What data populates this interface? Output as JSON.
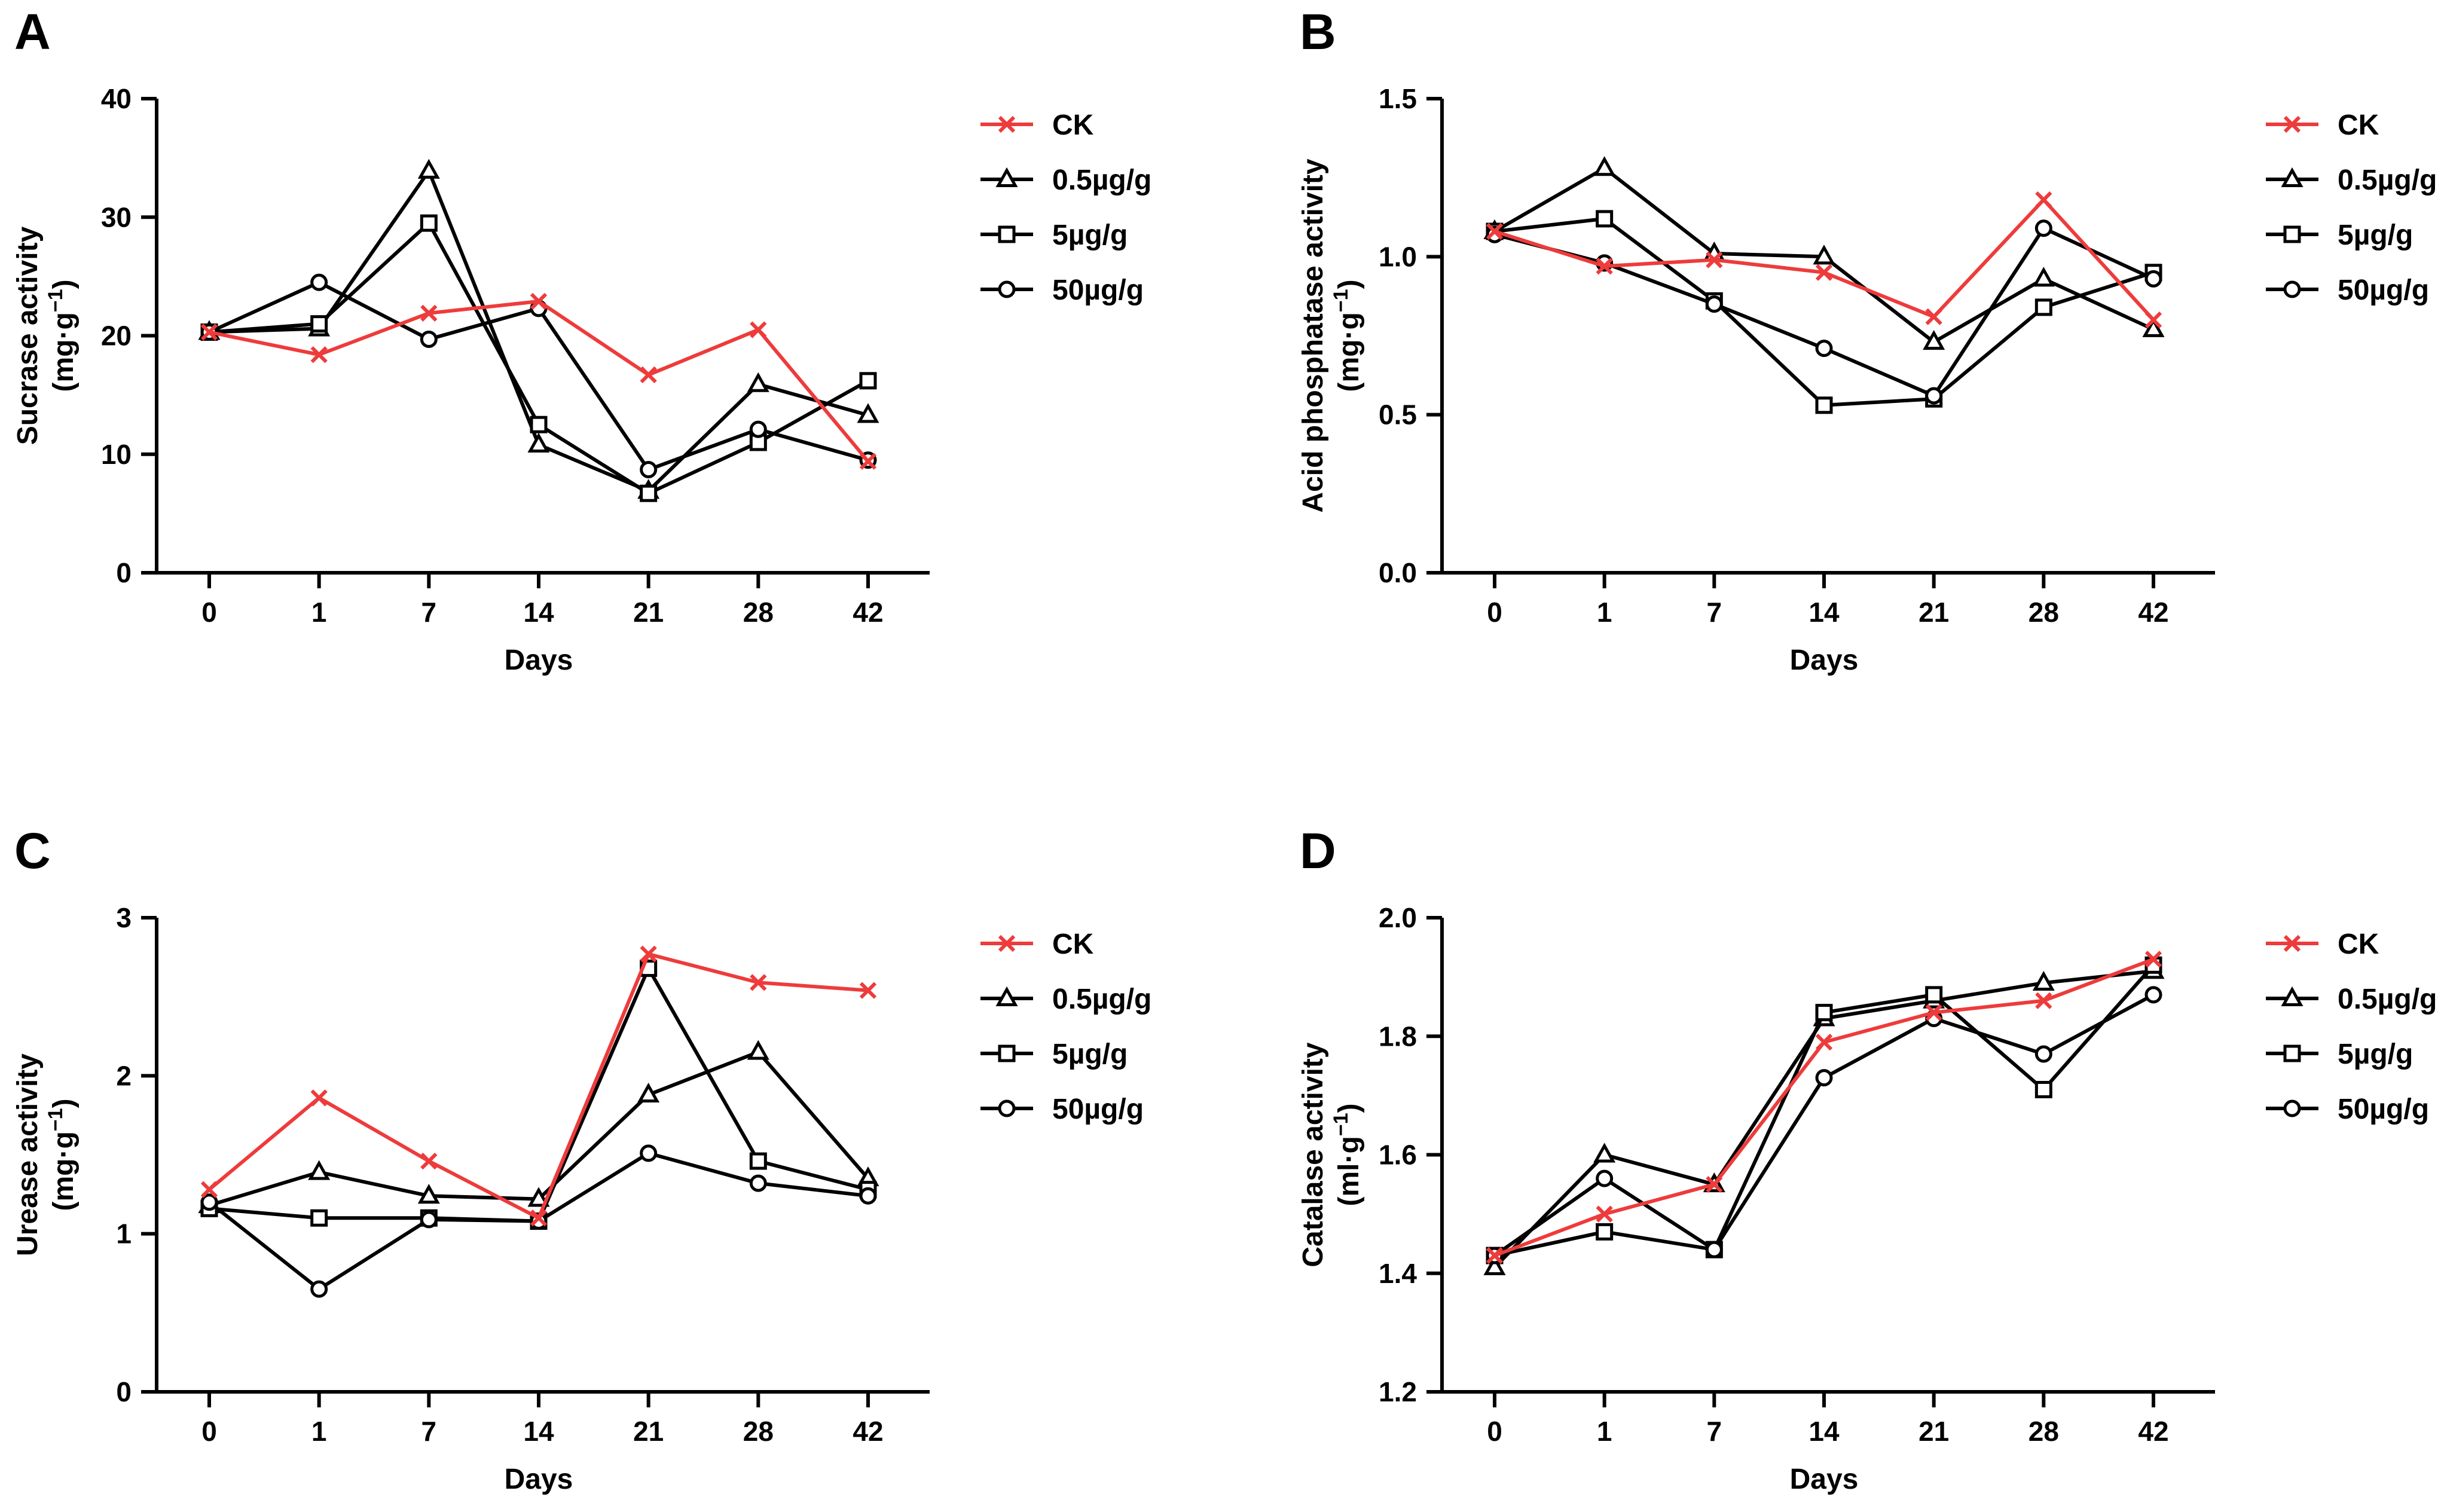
{
  "figure": {
    "colors": {
      "CK": "#ee3b3b",
      "0.5µg/g": "#000000",
      "5µg/g": "#000000",
      "50µg/g": "#000000"
    },
    "legend": [
      {
        "name": "CK",
        "marker": "x"
      },
      {
        "name": "0.5µg/g",
        "marker": "triangle"
      },
      {
        "name": "5µg/g",
        "marker": "square"
      },
      {
        "name": "50µg/g",
        "marker": "circle"
      }
    ]
  },
  "chart_data": [
    {
      "panel": "A",
      "type": "line",
      "categories": [
        "0",
        "1",
        "7",
        "14",
        "21",
        "28",
        "42"
      ],
      "xlabel": "Days",
      "ylabel": "Sucrase activity",
      "yunit": "(mg·g",
      "yunit_exp": "−1",
      "yunit_close": ")",
      "ylim": [
        0,
        40
      ],
      "yticks": [
        0,
        10,
        20,
        30,
        40
      ],
      "ytick_labels": [
        "0",
        "10",
        "20",
        "30",
        "40"
      ],
      "legend_position": "right",
      "series": [
        {
          "name": "CK",
          "marker": "x",
          "values": [
            20.3,
            18.4,
            21.9,
            22.9,
            16.7,
            20.5,
            9.4
          ]
        },
        {
          "name": "0.5µg/g",
          "marker": "triangle",
          "values": [
            20.3,
            20.6,
            33.9,
            10.8,
            6.9,
            15.9,
            13.3
          ]
        },
        {
          "name": "5µg/g",
          "marker": "square",
          "values": [
            20.3,
            21.0,
            29.5,
            12.5,
            6.7,
            11.0,
            16.2
          ]
        },
        {
          "name": "50µg/g",
          "marker": "circle",
          "values": [
            20.3,
            24.5,
            19.7,
            22.3,
            8.7,
            12.1,
            9.5
          ]
        }
      ]
    },
    {
      "panel": "B",
      "type": "line",
      "categories": [
        "0",
        "1",
        "7",
        "14",
        "21",
        "28",
        "42"
      ],
      "xlabel": "Days",
      "ylabel": "Acid phosphatase activity",
      "yunit": "(mg·g",
      "yunit_exp": "−1",
      "yunit_close": ")",
      "ylim": [
        0.0,
        1.5
      ],
      "yticks": [
        0.0,
        0.5,
        1.0,
        1.5
      ],
      "ytick_labels": [
        "0.0",
        "0.5",
        "1.0",
        "1.5"
      ],
      "legend_position": "right",
      "series": [
        {
          "name": "CK",
          "marker": "x",
          "values": [
            1.08,
            0.97,
            0.99,
            0.95,
            0.81,
            1.18,
            0.8
          ]
        },
        {
          "name": "0.5µg/g",
          "marker": "triangle",
          "values": [
            1.08,
            1.28,
            1.01,
            1.0,
            0.73,
            0.93,
            0.77
          ]
        },
        {
          "name": "5µg/g",
          "marker": "square",
          "values": [
            1.08,
            1.12,
            0.86,
            0.53,
            0.55,
            0.84,
            0.95
          ]
        },
        {
          "name": "50µg/g",
          "marker": "circle",
          "values": [
            1.07,
            0.98,
            0.85,
            0.71,
            0.56,
            1.09,
            0.93
          ]
        }
      ]
    },
    {
      "panel": "C",
      "type": "line",
      "categories": [
        "0",
        "1",
        "7",
        "14",
        "21",
        "28",
        "42"
      ],
      "xlabel": "Days",
      "ylabel": "Urease activity",
      "yunit": "(mg·g",
      "yunit_exp": "−1",
      "yunit_close": ")",
      "ylim": [
        0,
        3
      ],
      "yticks": [
        0,
        1,
        2,
        3
      ],
      "ytick_labels": [
        "0",
        "1",
        "2",
        "3"
      ],
      "legend_position": "right",
      "series": [
        {
          "name": "CK",
          "marker": "x",
          "values": [
            1.28,
            1.86,
            1.46,
            1.1,
            2.77,
            2.59,
            2.54
          ]
        },
        {
          "name": "0.5µg/g",
          "marker": "triangle",
          "values": [
            1.18,
            1.39,
            1.24,
            1.22,
            1.88,
            2.15,
            1.35
          ]
        },
        {
          "name": "5µg/g",
          "marker": "square",
          "values": [
            1.16,
            1.1,
            1.1,
            1.08,
            2.68,
            1.46,
            1.28
          ]
        },
        {
          "name": "50µg/g",
          "marker": "circle",
          "values": [
            1.2,
            0.65,
            1.09,
            1.08,
            1.51,
            1.32,
            1.24
          ]
        }
      ]
    },
    {
      "panel": "D",
      "type": "line",
      "categories": [
        "0",
        "1",
        "7",
        "14",
        "21",
        "28",
        "42"
      ],
      "xlabel": "Days",
      "ylabel": "Catalase activity",
      "yunit": "(ml·g",
      "yunit_exp": "−1",
      "yunit_close": ")",
      "ylim": [
        1.2,
        2.0
      ],
      "yticks": [
        1.2,
        1.4,
        1.6,
        1.8,
        2.0
      ],
      "ytick_labels": [
        "1.2",
        "1.4",
        "1.6",
        "1.8",
        "2.0"
      ],
      "legend_position": "right",
      "series": [
        {
          "name": "CK",
          "marker": "x",
          "values": [
            1.43,
            1.5,
            1.55,
            1.79,
            1.84,
            1.86,
            1.93
          ]
        },
        {
          "name": "0.5µg/g",
          "marker": "triangle",
          "values": [
            1.41,
            1.6,
            1.55,
            1.83,
            1.86,
            1.89,
            1.91
          ]
        },
        {
          "name": "5µg/g",
          "marker": "square",
          "values": [
            1.43,
            1.47,
            1.44,
            1.84,
            1.87,
            1.71,
            1.92
          ]
        },
        {
          "name": "50µg/g",
          "marker": "circle",
          "values": [
            1.43,
            1.56,
            1.44,
            1.73,
            1.83,
            1.77,
            1.87
          ]
        }
      ]
    }
  ]
}
